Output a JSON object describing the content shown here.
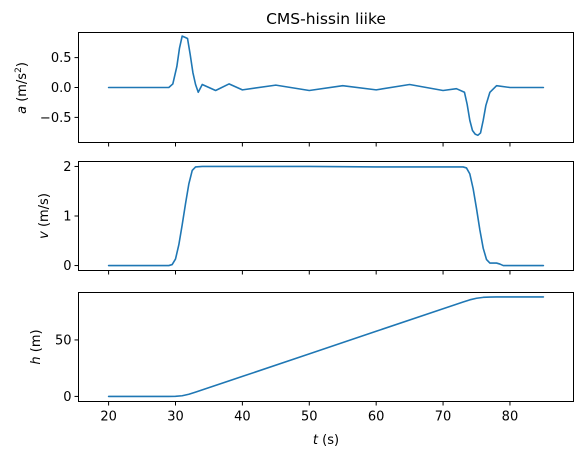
{
  "chart_data": {
    "type": "line",
    "title": "CMS-hissin liike",
    "line_color": "#1f77b4",
    "shared_x": {
      "label_var": "t",
      "label_unit": " (s)",
      "range": [
        15.5,
        89.5
      ],
      "ticks": [
        "20",
        "30",
        "40",
        "50",
        "60",
        "70",
        "80"
      ]
    },
    "panels": [
      {
        "id": "acceleration",
        "ylabel_var": "a",
        "ylabel_unit_before": " (m/s",
        "ylabel_sup": "2",
        "ylabel_unit_after": ")",
        "ylim": [
          -0.92,
          0.92
        ],
        "yticks": [
          "0.5",
          "0.0",
          "−0.5"
        ],
        "ytick_values": [
          0.5,
          0.0,
          -0.5
        ],
        "series": [
          {
            "x": [
              20,
              29,
              29.6,
              30.2,
              30.6,
              31.0,
              31.4,
              31.8,
              32.2,
              32.6,
              33.0,
              33.4,
              34,
              36,
              38,
              40,
              45,
              50,
              55,
              60,
              65,
              70,
              72,
              73.2,
              73.6,
              74.0,
              74.4,
              74.8,
              75.2,
              75.6,
              76.0,
              76.4,
              77,
              78,
              80,
              85
            ],
            "y": [
              0.0,
              0.0,
              0.06,
              0.35,
              0.66,
              0.86,
              0.84,
              0.82,
              0.55,
              0.25,
              0.05,
              -0.08,
              0.05,
              -0.05,
              0.06,
              -0.04,
              0.04,
              -0.05,
              0.03,
              -0.04,
              0.05,
              -0.05,
              -0.02,
              -0.08,
              -0.28,
              -0.55,
              -0.72,
              -0.78,
              -0.8,
              -0.76,
              -0.55,
              -0.3,
              -0.08,
              0.03,
              0.0,
              0.0
            ]
          }
        ]
      },
      {
        "id": "velocity",
        "ylabel_var": "v",
        "ylabel_unit": " (m/s)",
        "ylim": [
          -0.1,
          2.1
        ],
        "yticks": [
          "2",
          "1",
          "0"
        ],
        "ytick_values": [
          2,
          1,
          0
        ],
        "series": [
          {
            "x": [
              20,
              29,
              29.5,
              30,
              30.5,
              31,
              31.5,
              32,
              32.5,
              33,
              34,
              40,
              50,
              60,
              70,
              73,
              73.5,
              74,
              74.5,
              75,
              75.5,
              76,
              76.5,
              77,
              78,
              78.5,
              79,
              85
            ],
            "y": [
              0.0,
              0.0,
              0.02,
              0.13,
              0.42,
              0.82,
              1.25,
              1.65,
              1.92,
              1.99,
              2.0,
              2.0,
              2.0,
              1.99,
              1.99,
              1.99,
              1.97,
              1.85,
              1.55,
              1.15,
              0.72,
              0.35,
              0.12,
              0.05,
              0.05,
              0.03,
              0.0,
              0.0
            ]
          }
        ]
      },
      {
        "id": "height",
        "ylabel_var": "h",
        "ylabel_unit": " (m)",
        "ylim": [
          -4.5,
          92
        ],
        "yticks": [
          "50",
          "0"
        ],
        "ytick_values": [
          50,
          0
        ],
        "series": [
          {
            "x": [
              20,
              29,
              30,
              31,
              32,
              33,
              35,
              40,
              50,
              60,
              70,
              73,
              74,
              75,
              76,
              77,
              78,
              85
            ],
            "y": [
              0,
              0,
              0.1,
              0.6,
              1.9,
              3.8,
              7.8,
              17.7,
              37.7,
              57.7,
              77.6,
              83.6,
              85.5,
              86.9,
              87.7,
              88.0,
              88.1,
              88.1
            ]
          }
        ]
      }
    ]
  }
}
